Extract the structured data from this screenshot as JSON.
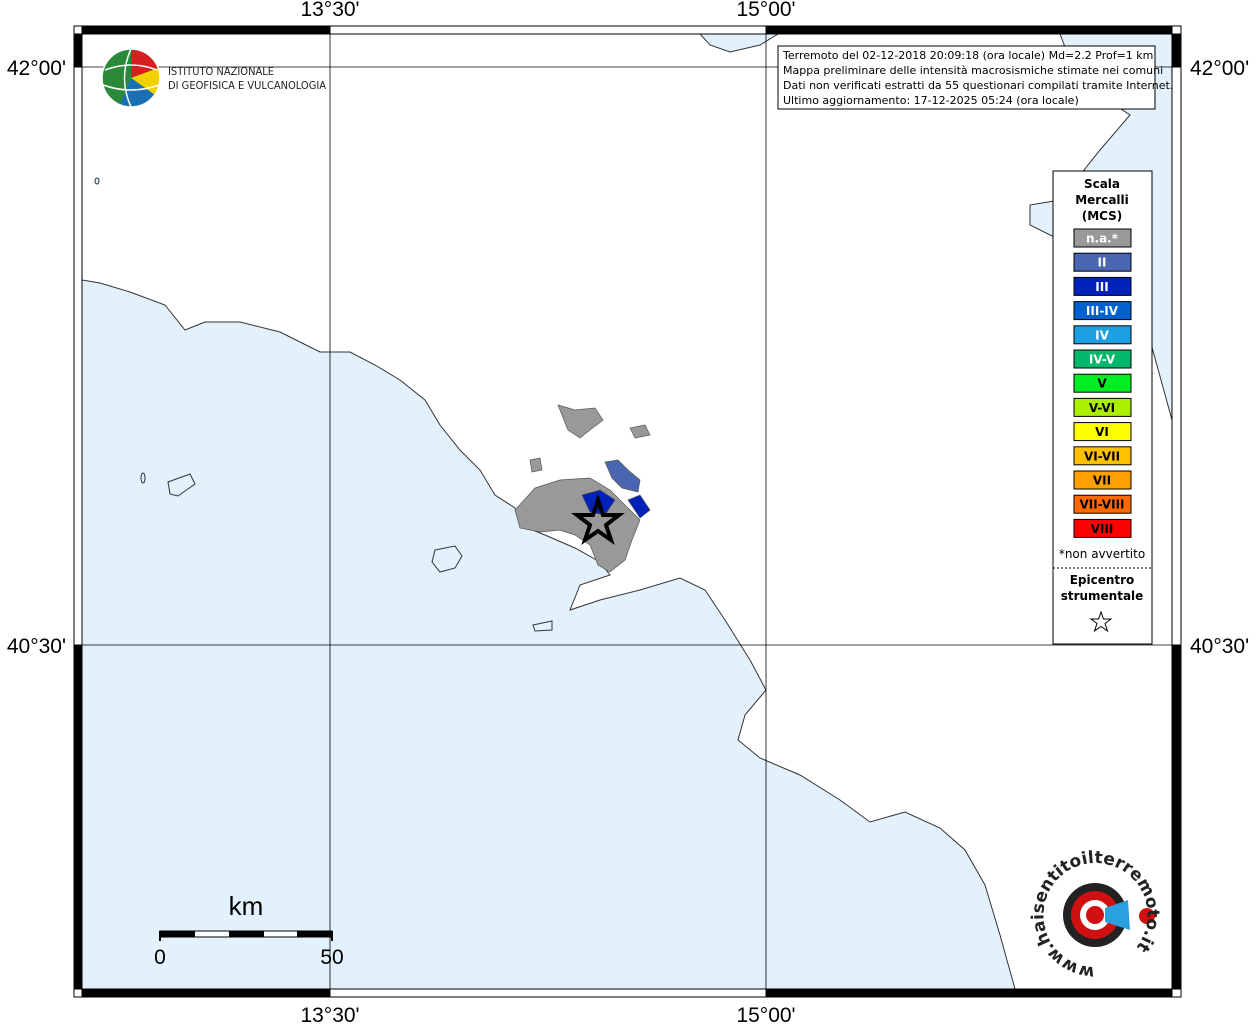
{
  "axes": {
    "top": [
      "13°30'",
      "15°00'"
    ],
    "bottom": [
      "13°30'",
      "15°00'"
    ],
    "left": [
      "42°00'",
      "40°30'"
    ],
    "right": [
      "42°00'",
      "40°30'"
    ]
  },
  "logo": {
    "line1": "ISTITUTO NAZIONALE",
    "line2": "DI GEOFISICA E VULCANOLOGIA"
  },
  "info": [
    "Terremoto del 02-12-2018 20:09:18 (ora locale) Md=2.2 Prof=1 km",
    "Mappa preliminare delle intensità macrosismiche stimate nei comuni",
    "Dati non verificati estratti da 55 questionari compilati tramite Internet.",
    "Ultimo aggiornamento: 17-12-2025 05:24 (ora locale)"
  ],
  "legend": {
    "title": [
      "Scala",
      "Mercalli",
      "(MCS)"
    ],
    "entries": [
      {
        "label": "n.a.*",
        "color": "#999999"
      },
      {
        "label": "II",
        "color": "#4a66b0"
      },
      {
        "label": "III",
        "color": "#0022bb"
      },
      {
        "label": "III-IV",
        "color": "#0060cc"
      },
      {
        "label": "IV",
        "color": "#1ea0e0"
      },
      {
        "label": "IV-V",
        "color": "#00b86a"
      },
      {
        "label": "V",
        "color": "#00ee22"
      },
      {
        "label": "V-VI",
        "color": "#aaee00"
      },
      {
        "label": "VI",
        "color": "#ffff00"
      },
      {
        "label": "VI-VII",
        "color": "#ffc000"
      },
      {
        "label": "VII",
        "color": "#ffa000"
      },
      {
        "label": "VII-VIII",
        "color": "#ff6a00"
      },
      {
        "label": "VIII",
        "color": "#ff0000"
      }
    ],
    "note": "*non avvertito",
    "epicentre": [
      "Epicentro",
      "strumentale"
    ]
  },
  "scale": {
    "unit": "km",
    "min": "0",
    "max": "50"
  },
  "site": "www.haisentitoilterremoto.it"
}
